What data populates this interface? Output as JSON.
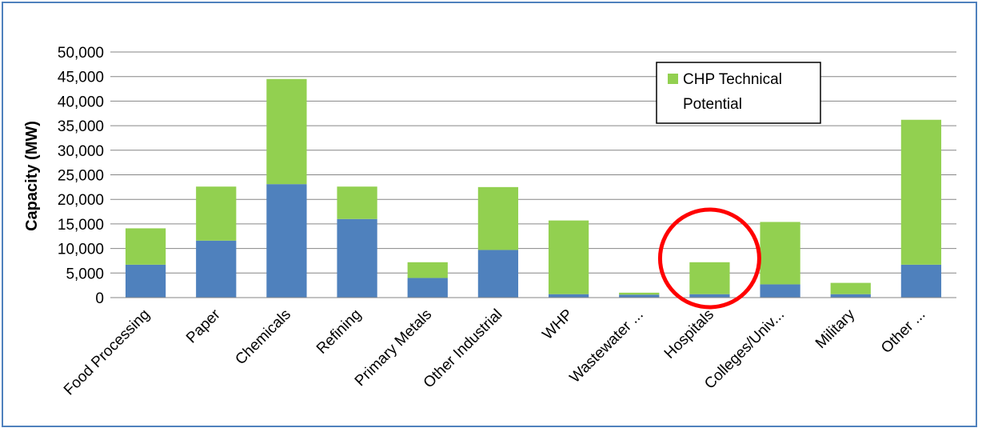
{
  "chart_data": {
    "type": "bar",
    "stacked": true,
    "title": "",
    "xlabel": "",
    "ylabel": "Capacity (MW)",
    "ylim": [
      0,
      50000
    ],
    "yticks": [
      0,
      5000,
      10000,
      15000,
      20000,
      25000,
      30000,
      35000,
      40000,
      45000,
      50000
    ],
    "ytick_labels": [
      "0",
      "5,000",
      "10,000",
      "15,000",
      "20,000",
      "25,000",
      "30,000",
      "35,000",
      "40,000",
      "45,000",
      "50,000"
    ],
    "grid": true,
    "legend_position": "top-right",
    "categories": [
      "Food Processing",
      "Paper",
      "Chemicals",
      "Refining",
      "Primary Metals",
      "Other Industrial",
      "WHP",
      "Wastewater ...",
      "Hospitals",
      "Colleges/Univ...",
      "Military",
      "Other ..."
    ],
    "series": [
      {
        "name": "",
        "color": "#4f81bd",
        "values": [
          6700,
          11600,
          23100,
          16000,
          4000,
          9700,
          700,
          600,
          700,
          2700,
          700,
          6700
        ]
      },
      {
        "name": "CHP Technical Potential",
        "color": "#92d050",
        "values": [
          7400,
          11000,
          21400,
          6600,
          3200,
          12800,
          15000,
          400,
          6500,
          12700,
          2300,
          29500
        ]
      }
    ],
    "annotation": {
      "type": "circle",
      "color": "#ff0000",
      "target_category": "Hospitals"
    }
  }
}
